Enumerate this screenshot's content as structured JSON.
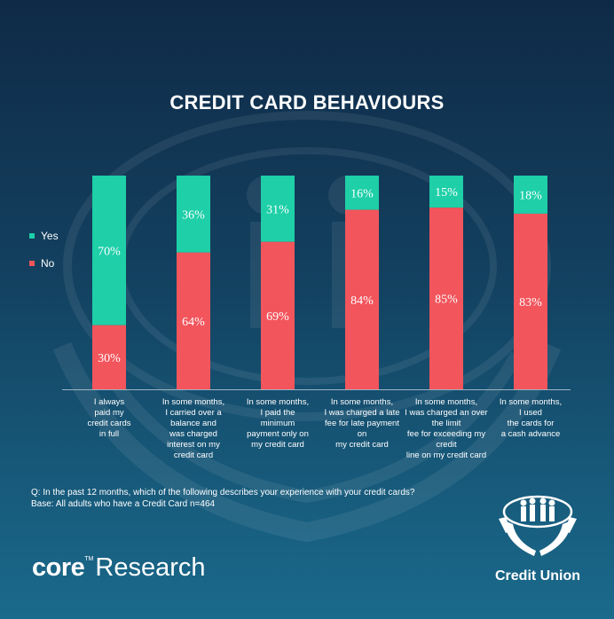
{
  "title": "CREDIT CARD BEHAVIOURS",
  "legend": {
    "yes_label": "Yes",
    "no_label": "No",
    "yes_color": "#1ecfa8",
    "no_color": "#f2555c"
  },
  "chart_data": {
    "type": "bar",
    "stacked": true,
    "title": "CREDIT CARD BEHAVIOURS",
    "categories": [
      "I always\npaid my\ncredit cards\nin full",
      "In some months,\nI carried over a\nbalance and\nwas charged\ninterest on my\ncredit card",
      "In some months,\nI paid the\nminimum\npayment only on\nmy credit card",
      "In some months,\nI was charged a late\nfee for late payment\non\nmy credit card",
      "In some months,\nI was charged an over\nthe limit\nfee for exceeding my\ncredit\nline on my credit card",
      "In some months,\nI used\nthe cards for\na cash advance"
    ],
    "series": [
      {
        "name": "Yes",
        "color": "#1ecfa8",
        "values": [
          70,
          36,
          31,
          16,
          15,
          18
        ]
      },
      {
        "name": "No",
        "color": "#f2555c",
        "values": [
          30,
          64,
          69,
          84,
          85,
          83
        ]
      }
    ],
    "value_format": "{v}%",
    "ylim": [
      0,
      100
    ],
    "legend_position": "left",
    "grid": false
  },
  "footnote": {
    "question": "Q: In the past 12 months, which of the following describes your experience with your credit cards?",
    "base": "Base: All adults  who have a Credit Card n=464"
  },
  "branding": {
    "core_part": "core",
    "tm": "TM",
    "research_part": "Research",
    "credit_union": "Credit Union"
  }
}
